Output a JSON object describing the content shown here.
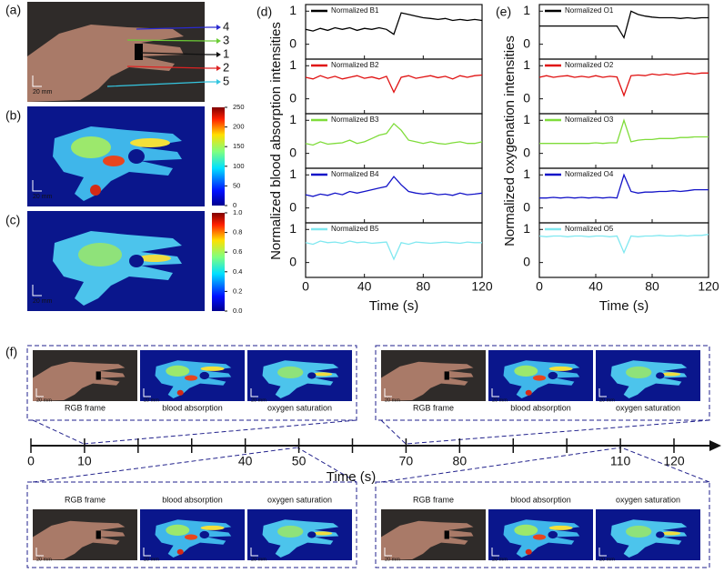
{
  "panel_labels": [
    "(a)",
    "(b)",
    "(c)",
    "(d)",
    "(e)",
    "(f)"
  ],
  "scale_label": "20 mm",
  "vein_markers": [
    {
      "label": "4",
      "color": "#2a2ad0"
    },
    {
      "label": "3",
      "color": "#6ccc36"
    },
    {
      "label": "1",
      "color": "#111111"
    },
    {
      "label": "2",
      "color": "#dd2222"
    },
    {
      "label": "5",
      "color": "#35c6e0"
    }
  ],
  "colorbars": [
    {
      "ylim": [
        0,
        250
      ],
      "yticks": [
        0,
        50,
        100,
        150,
        200,
        250
      ]
    },
    {
      "ylim": [
        0,
        1
      ],
      "yticks": [
        {
          "value": 0,
          "label": "0.0"
        },
        {
          "value": 0.2,
          "label": "0.2"
        },
        {
          "value": 0.4,
          "label": "0.4"
        },
        {
          "value": 0.6,
          "label": "0.6"
        },
        {
          "value": 0.8,
          "label": "0.8"
        },
        {
          "value": 1,
          "label": "1.0"
        }
      ]
    }
  ],
  "snapshot_captions": [
    "RGB frame",
    "blood absorption",
    "oxygen saturation"
  ],
  "chart_data": [
    {
      "type": "line",
      "ylabel": "Normalized blood absorption intensities",
      "xlabel": "Time (s)",
      "x": [
        0,
        5,
        10,
        15,
        20,
        25,
        30,
        35,
        40,
        45,
        50,
        55,
        60,
        65,
        70,
        75,
        80,
        85,
        90,
        95,
        100,
        105,
        110,
        115,
        120
      ],
      "xlim": [
        0,
        120
      ],
      "xticks": [
        0,
        40,
        80,
        120
      ],
      "subplots": [
        {
          "ylim": [
            -0.45,
            1.2
          ],
          "yticks": [
            0,
            1
          ],
          "series": [
            {
              "name": "Normalized B1",
              "color": "#000000",
              "values": [
                0.45,
                0.4,
                0.48,
                0.42,
                0.5,
                0.45,
                0.5,
                0.42,
                0.48,
                0.45,
                0.5,
                0.45,
                0.3,
                0.95,
                0.9,
                0.85,
                0.8,
                0.78,
                0.75,
                0.78,
                0.72,
                0.75,
                0.72,
                0.75,
                0.72
              ]
            }
          ]
        },
        {
          "ylim": [
            -0.45,
            1.2
          ],
          "yticks": [
            0,
            1
          ],
          "series": [
            {
              "name": "Normalized B2",
              "color": "#e01010",
              "values": [
                0.65,
                0.6,
                0.7,
                0.62,
                0.68,
                0.6,
                0.65,
                0.7,
                0.62,
                0.66,
                0.6,
                0.68,
                0.2,
                0.65,
                0.7,
                0.62,
                0.66,
                0.7,
                0.64,
                0.68,
                0.6,
                0.7,
                0.65,
                0.7,
                0.72
              ]
            }
          ]
        },
        {
          "ylim": [
            -0.45,
            1.2
          ],
          "yticks": [
            0,
            1
          ],
          "series": [
            {
              "name": "Normalized B3",
              "color": "#7fdc3a",
              "values": [
                0.3,
                0.25,
                0.35,
                0.28,
                0.3,
                0.32,
                0.4,
                0.3,
                0.35,
                0.45,
                0.55,
                0.6,
                0.9,
                0.7,
                0.4,
                0.35,
                0.3,
                0.35,
                0.3,
                0.28,
                0.32,
                0.35,
                0.3,
                0.3,
                0.35
              ]
            }
          ]
        },
        {
          "ylim": [
            -0.45,
            1.2
          ],
          "yticks": [
            0,
            1
          ],
          "series": [
            {
              "name": "Normalized B4",
              "color": "#1414c8",
              "values": [
                0.4,
                0.35,
                0.42,
                0.38,
                0.45,
                0.4,
                0.5,
                0.45,
                0.5,
                0.55,
                0.6,
                0.65,
                0.95,
                0.7,
                0.5,
                0.45,
                0.42,
                0.45,
                0.4,
                0.42,
                0.38,
                0.45,
                0.4,
                0.42,
                0.45
              ]
            }
          ]
        },
        {
          "ylim": [
            -0.45,
            1.2
          ],
          "yticks": [
            0,
            1
          ],
          "series": [
            {
              "name": "Normalized B5",
              "color": "#80e8f0",
              "values": [
                0.6,
                0.55,
                0.65,
                0.6,
                0.62,
                0.58,
                0.65,
                0.6,
                0.62,
                0.58,
                0.6,
                0.62,
                0.1,
                0.6,
                0.55,
                0.62,
                0.6,
                0.58,
                0.6,
                0.62,
                0.6,
                0.58,
                0.62,
                0.6,
                0.6
              ]
            }
          ]
        }
      ]
    },
    {
      "type": "line",
      "ylabel": "Normalized oxygenation intensities",
      "xlabel": "Time (s)",
      "x": [
        0,
        5,
        10,
        15,
        20,
        25,
        30,
        35,
        40,
        45,
        50,
        55,
        60,
        65,
        70,
        75,
        80,
        85,
        90,
        95,
        100,
        105,
        110,
        115,
        120
      ],
      "xlim": [
        0,
        120
      ],
      "xticks": [
        0,
        40,
        80,
        120
      ],
      "subplots": [
        {
          "ylim": [
            -0.45,
            1.2
          ],
          "yticks": [
            0,
            1
          ],
          "series": [
            {
              "name": "Normalized O1",
              "color": "#000000",
              "values": [
                0.55,
                0.55,
                0.55,
                0.55,
                0.55,
                0.55,
                0.55,
                0.55,
                0.55,
                0.55,
                0.55,
                0.55,
                0.2,
                1.0,
                0.9,
                0.85,
                0.82,
                0.8,
                0.8,
                0.8,
                0.78,
                0.8,
                0.78,
                0.8,
                0.8
              ]
            }
          ]
        },
        {
          "ylim": [
            -0.45,
            1.2
          ],
          "yticks": [
            0,
            1
          ],
          "series": [
            {
              "name": "Normalized O2",
              "color": "#e01010",
              "values": [
                0.65,
                0.7,
                0.65,
                0.68,
                0.7,
                0.65,
                0.68,
                0.65,
                0.7,
                0.65,
                0.68,
                0.66,
                0.1,
                0.7,
                0.72,
                0.7,
                0.75,
                0.72,
                0.75,
                0.72,
                0.75,
                0.78,
                0.75,
                0.78,
                0.78
              ]
            }
          ]
        },
        {
          "ylim": [
            -0.45,
            1.2
          ],
          "yticks": [
            0,
            1
          ],
          "series": [
            {
              "name": "Normalized O3",
              "color": "#7fdc3a",
              "values": [
                0.3,
                0.3,
                0.3,
                0.3,
                0.3,
                0.3,
                0.3,
                0.3,
                0.32,
                0.3,
                0.32,
                0.32,
                1.0,
                0.35,
                0.4,
                0.42,
                0.42,
                0.45,
                0.45,
                0.45,
                0.48,
                0.48,
                0.5,
                0.5,
                0.5
              ]
            }
          ]
        },
        {
          "ylim": [
            -0.45,
            1.2
          ],
          "yticks": [
            0,
            1
          ],
          "series": [
            {
              "name": "Normalized O4",
              "color": "#1414c8",
              "values": [
                0.3,
                0.3,
                0.32,
                0.3,
                0.32,
                0.3,
                0.32,
                0.3,
                0.32,
                0.3,
                0.32,
                0.3,
                1.0,
                0.5,
                0.45,
                0.48,
                0.48,
                0.5,
                0.5,
                0.52,
                0.5,
                0.52,
                0.55,
                0.55,
                0.55
              ]
            }
          ]
        },
        {
          "ylim": [
            -0.45,
            1.2
          ],
          "yticks": [
            0,
            1
          ],
          "series": [
            {
              "name": "Normalized O5",
              "color": "#80e8f0",
              "values": [
                0.8,
                0.78,
                0.8,
                0.8,
                0.78,
                0.8,
                0.8,
                0.78,
                0.8,
                0.8,
                0.78,
                0.8,
                0.3,
                0.8,
                0.78,
                0.8,
                0.8,
                0.82,
                0.8,
                0.8,
                0.82,
                0.8,
                0.82,
                0.82,
                0.85
              ]
            }
          ]
        }
      ]
    },
    {
      "type": "timeline",
      "xlabel": "Time (s)",
      "xlim": [
        0,
        120
      ],
      "xticks": [
        0,
        10,
        40,
        50,
        70,
        80,
        110,
        120
      ],
      "xtick_colors": [
        "#111111",
        "#22228c",
        "#111111",
        "#22228c",
        "#22228c",
        "#111111",
        "#22228c",
        "#111111"
      ],
      "minor_ticks": [
        20,
        30,
        60,
        90,
        100
      ]
    }
  ]
}
